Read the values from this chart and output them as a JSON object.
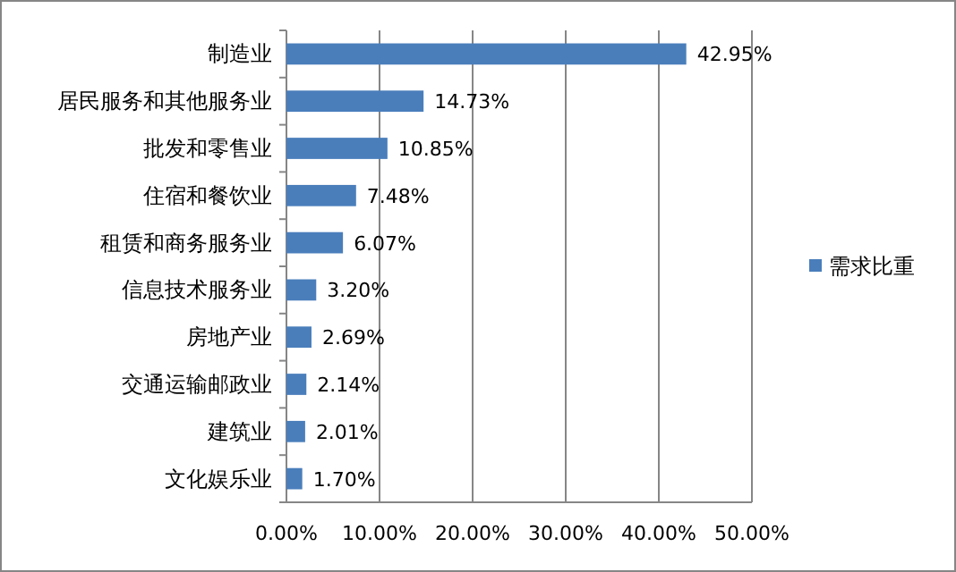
{
  "chart_data": {
    "type": "bar",
    "orientation": "horizontal",
    "categories": [
      "制造业",
      "居民服务和其他服务业",
      "批发和零售业",
      "住宿和餐饮业",
      "租赁和商务服务业",
      "信息技术服务业",
      "房地产业",
      "交通运输邮政业",
      "建筑业",
      "文化娱乐业"
    ],
    "series": [
      {
        "name": "需求比重",
        "color": "#4a7ebb",
        "values": [
          42.95,
          14.73,
          10.85,
          7.48,
          6.07,
          3.2,
          2.69,
          2.14,
          2.01,
          1.7
        ],
        "value_labels": [
          "42.95%",
          "14.73%",
          "10.85%",
          "7.48%",
          "6.07%",
          "3.20%",
          "2.69%",
          "2.14%",
          "2.01%",
          "1.70%"
        ]
      }
    ],
    "xlim": [
      0,
      50
    ],
    "xticks": [
      {
        "value": 0,
        "label": "0.00%"
      },
      {
        "value": 10,
        "label": "10.00%"
      },
      {
        "value": 20,
        "label": "20.00%"
      },
      {
        "value": 30,
        "label": "30.00%"
      },
      {
        "value": 40,
        "label": "40.00%"
      },
      {
        "value": 50,
        "label": "50.00%"
      }
    ],
    "grid": "x",
    "legend": "right"
  }
}
